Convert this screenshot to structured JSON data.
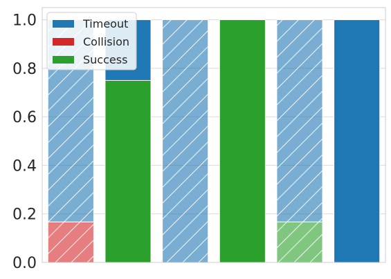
{
  "chart_data": {
    "type": "bar",
    "stacked": true,
    "categories": [
      "",
      "",
      "",
      "",
      "",
      ""
    ],
    "series": [
      {
        "name": "Timeout",
        "color": "#1f77b4",
        "values": [
          0.833,
          0.25,
          1.0,
          0.0,
          0.833,
          1.0
        ]
      },
      {
        "name": "Collision",
        "color": "#d62728",
        "values": [
          0.167,
          0.0,
          0.0,
          0.0,
          0.0,
          0.0
        ]
      },
      {
        "name": "Success",
        "color": "#2ca02c",
        "values": [
          0.0,
          0.75,
          0.0,
          1.0,
          0.167,
          0.0
        ]
      }
    ],
    "hatched_faded_bars": [
      0,
      2,
      4
    ],
    "ylim": [
      0.0,
      1.05
    ],
    "yticks": [
      0.0,
      0.2,
      0.4,
      0.6,
      0.8,
      1.0
    ],
    "ytick_labels": [
      "0.0",
      "0.2",
      "0.4",
      "0.6",
      "0.8",
      "1.0"
    ],
    "grid": true,
    "legend_position": "top-left",
    "title": "",
    "xlabel": "",
    "ylabel": ""
  }
}
